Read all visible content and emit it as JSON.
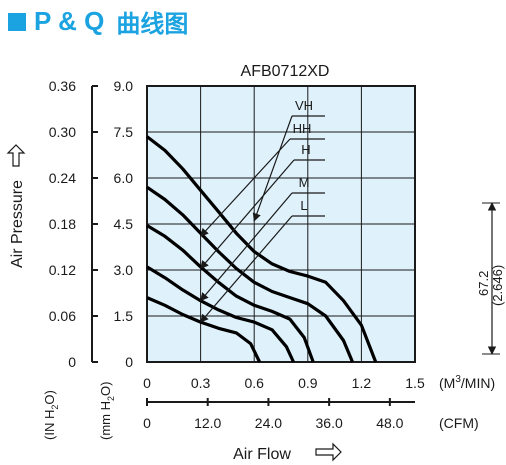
{
  "header": {
    "title": "P & Q",
    "title_cn": "曲线图"
  },
  "colors": {
    "accent": "#1aa3e0",
    "plot_bg": "#dff1fb",
    "ink": "#1a1a1a"
  },
  "chart_data": {
    "type": "line",
    "title": "AFB0712XD",
    "xlabel": "Air Flow",
    "ylabel": "Air Pressure",
    "x_unit_top": "(M3/MIN)",
    "x_unit_bottom": "(CFM)",
    "y_unit_left": "(IN H2O)",
    "y_unit_right": "(mm H2O)",
    "xlim": [
      0,
      1.5
    ],
    "ylim": [
      0,
      9.0
    ],
    "x_ticks": [
      "0",
      "0.3",
      "0.6",
      "0.9",
      "1.2",
      "1.5"
    ],
    "cfm_ticks": [
      "0",
      "12.0",
      "24.0",
      "36.0",
      "48.0"
    ],
    "cfm_values": [
      0,
      12.0,
      24.0,
      36.0,
      48.0
    ],
    "y_ticks_mm": [
      "0",
      "1.5",
      "3.0",
      "4.5",
      "6.0",
      "7.5",
      "9.0"
    ],
    "y_ticks_in": [
      "0",
      "0.06",
      "0.12",
      "0.18",
      "0.24",
      "0.30",
      "0.36"
    ],
    "grid": true,
    "series": [
      {
        "name": "VH",
        "points": [
          [
            0,
            7.35
          ],
          [
            0.1,
            6.9
          ],
          [
            0.2,
            6.3
          ],
          [
            0.3,
            5.6
          ],
          [
            0.4,
            4.9
          ],
          [
            0.5,
            4.2
          ],
          [
            0.6,
            3.6
          ],
          [
            0.7,
            3.2
          ],
          [
            0.8,
            2.95
          ],
          [
            0.9,
            2.8
          ],
          [
            1.0,
            2.6
          ],
          [
            1.1,
            2.0
          ],
          [
            1.2,
            1.2
          ],
          [
            1.28,
            0
          ]
        ]
      },
      {
        "name": "HH",
        "points": [
          [
            0,
            5.7
          ],
          [
            0.1,
            5.3
          ],
          [
            0.2,
            4.8
          ],
          [
            0.3,
            4.2
          ],
          [
            0.4,
            3.6
          ],
          [
            0.5,
            3.05
          ],
          [
            0.6,
            2.6
          ],
          [
            0.7,
            2.3
          ],
          [
            0.8,
            2.1
          ],
          [
            0.9,
            1.9
          ],
          [
            1.0,
            1.5
          ],
          [
            1.1,
            0.7
          ],
          [
            1.15,
            0
          ]
        ]
      },
      {
        "name": "H",
        "points": [
          [
            0,
            4.45
          ],
          [
            0.1,
            4.1
          ],
          [
            0.2,
            3.65
          ],
          [
            0.3,
            3.1
          ],
          [
            0.4,
            2.6
          ],
          [
            0.5,
            2.15
          ],
          [
            0.6,
            1.85
          ],
          [
            0.7,
            1.65
          ],
          [
            0.8,
            1.4
          ],
          [
            0.88,
            0.8
          ],
          [
            0.93,
            0
          ]
        ]
      },
      {
        "name": "M",
        "points": [
          [
            0,
            3.1
          ],
          [
            0.1,
            2.75
          ],
          [
            0.2,
            2.35
          ],
          [
            0.3,
            2.0
          ],
          [
            0.4,
            1.7
          ],
          [
            0.5,
            1.45
          ],
          [
            0.6,
            1.3
          ],
          [
            0.7,
            1.05
          ],
          [
            0.78,
            0.5
          ],
          [
            0.82,
            0
          ]
        ]
      },
      {
        "name": "L",
        "points": [
          [
            0,
            2.1
          ],
          [
            0.1,
            1.85
          ],
          [
            0.2,
            1.55
          ],
          [
            0.3,
            1.3
          ],
          [
            0.4,
            1.1
          ],
          [
            0.5,
            0.95
          ],
          [
            0.58,
            0.6
          ],
          [
            0.63,
            0
          ]
        ]
      }
    ],
    "legend_anchor_x": [
      0.6,
      0.3,
      0.3,
      0.3,
      0.3
    ],
    "legend_anchor_y": [
      4.6,
      4.1,
      3.05,
      2.0,
      1.3
    ],
    "dimension_label": "67.2",
    "dimension_label_2": "(2.646)"
  }
}
